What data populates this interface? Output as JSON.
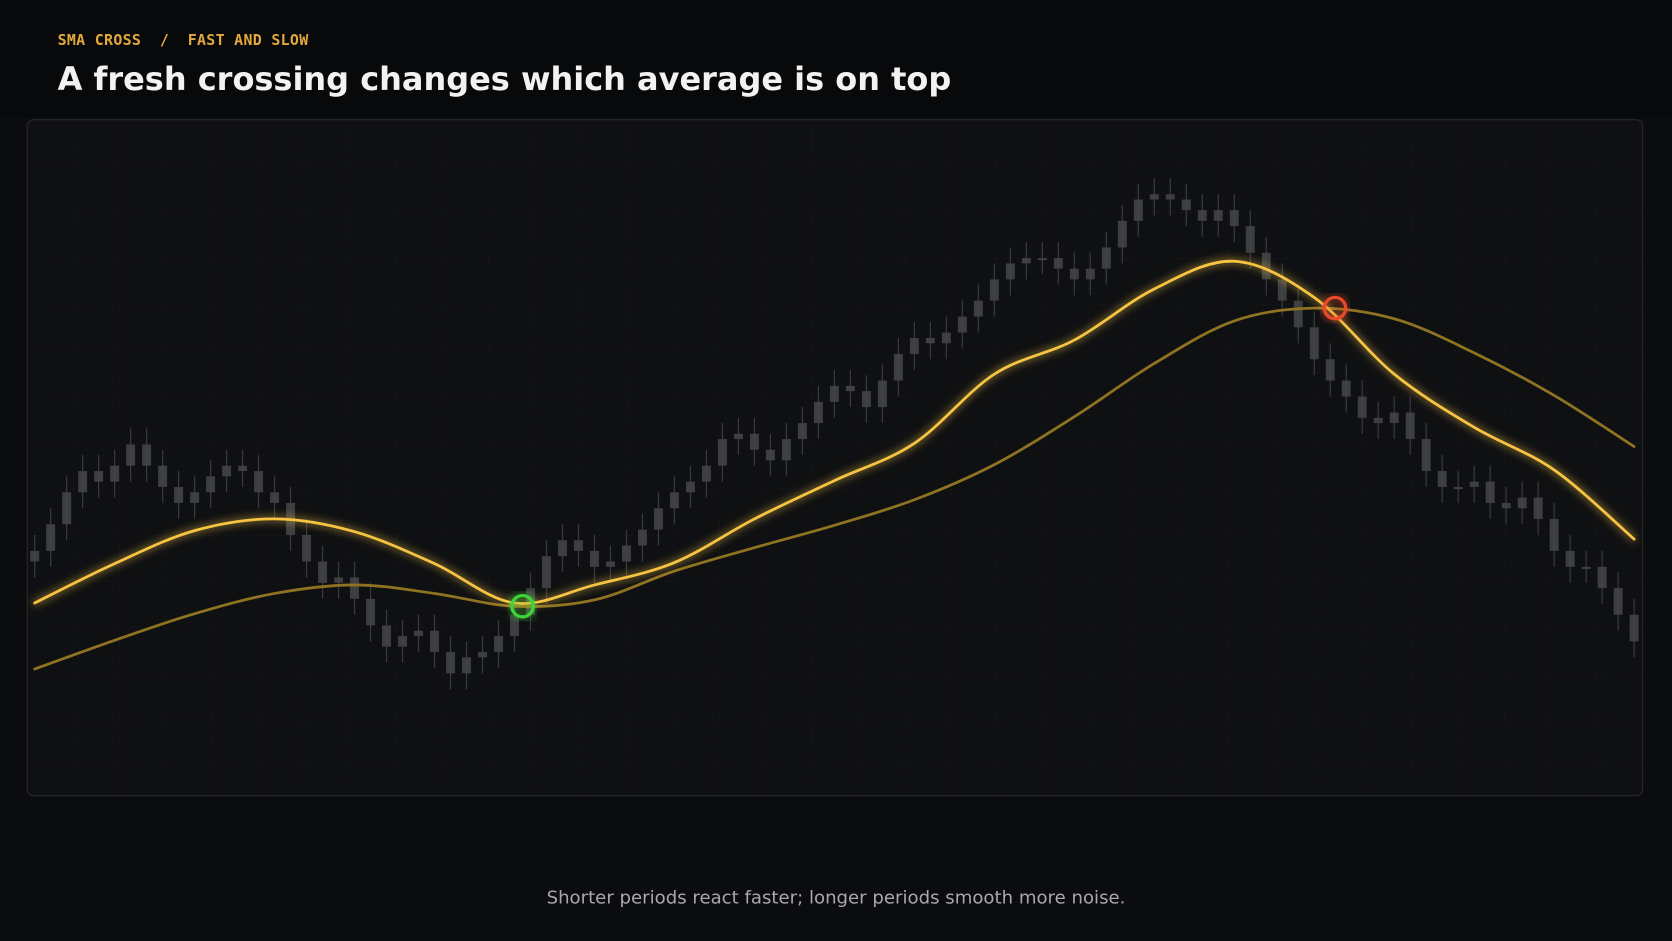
{
  "chart_data": {
    "type": "candlestick",
    "eyebrow": "SMA CROSS  /  FAST AND SLOW",
    "title": "A fresh crossing changes which average is on top",
    "caption": "Shorter periods react faster; longer periods smooth more noise.",
    "xlim": [
      -0.5,
      100.5
    ],
    "ylim": [
      0,
      127
    ],
    "candle_color": "#454649",
    "open": [
      44,
      46,
      51,
      57,
      61,
      59,
      62,
      66,
      62,
      58,
      55,
      57,
      60,
      62,
      61,
      57,
      55,
      49,
      44,
      40,
      41,
      37,
      32,
      28,
      30,
      31,
      27,
      23,
      26,
      27,
      30,
      34,
      39,
      45,
      48,
      46,
      43,
      44,
      47,
      50,
      54,
      57,
      59,
      62,
      67,
      68,
      65,
      63,
      67,
      70,
      74,
      77,
      76,
      73,
      78,
      83,
      86,
      85,
      87,
      90,
      93,
      97,
      100,
      101,
      101,
      99,
      97,
      99,
      103,
      108,
      112,
      113,
      112,
      110,
      108,
      110,
      107,
      102,
      97,
      93,
      88,
      82,
      78,
      75,
      71,
      70,
      72,
      67,
      61,
      58,
      58,
      59,
      55,
      54,
      56,
      52,
      46,
      43,
      43,
      39,
      34
    ],
    "high": [
      49,
      54,
      60,
      64,
      64,
      65,
      69,
      69,
      65,
      61,
      60,
      63,
      65,
      65,
      64,
      60,
      58,
      52,
      47,
      44,
      44,
      40,
      35,
      33,
      34,
      34,
      30,
      29,
      30,
      33,
      37,
      42,
      48,
      51,
      51,
      49,
      47,
      50,
      53,
      57,
      60,
      62,
      65,
      70,
      71,
      71,
      68,
      70,
      73,
      77,
      80,
      80,
      79,
      81,
      86,
      89,
      89,
      90,
      93,
      96,
      100,
      103,
      104,
      104,
      104,
      102,
      102,
      106,
      111,
      115,
      116,
      116,
      115,
      113,
      113,
      113,
      110,
      105,
      100,
      96,
      91,
      85,
      81,
      78,
      74,
      75,
      75,
      70,
      64,
      61,
      62,
      62,
      58,
      59,
      59,
      55,
      49,
      46,
      46,
      42,
      37
    ],
    "low": [
      41,
      43,
      48,
      54,
      56,
      56,
      59,
      59,
      55,
      52,
      52,
      54,
      57,
      58,
      54,
      52,
      46,
      41,
      37,
      37,
      34,
      29,
      25,
      25,
      27,
      24,
      20,
      20,
      23,
      24,
      27,
      31,
      36,
      42,
      43,
      40,
      40,
      41,
      44,
      47,
      51,
      54,
      56,
      59,
      64,
      62,
      60,
      60,
      64,
      67,
      71,
      73,
      70,
      70,
      75,
      80,
      82,
      82,
      84,
      87,
      90,
      94,
      97,
      98,
      96,
      94,
      94,
      96,
      100,
      105,
      109,
      109,
      107,
      105,
      105,
      104,
      99,
      94,
      90,
      85,
      79,
      75,
      72,
      68,
      67,
      67,
      64,
      58,
      55,
      55,
      55,
      52,
      51,
      51,
      49,
      43,
      40,
      40,
      36,
      31,
      26
    ],
    "close": [
      46,
      51,
      57,
      61,
      59,
      62,
      66,
      62,
      58,
      55,
      57,
      60,
      62,
      61,
      57,
      55,
      49,
      44,
      40,
      41,
      37,
      32,
      28,
      30,
      31,
      27,
      23,
      26,
      27,
      30,
      34,
      39,
      45,
      48,
      46,
      43,
      44,
      47,
      50,
      54,
      57,
      59,
      62,
      67,
      68,
      65,
      63,
      67,
      70,
      74,
      77,
      76,
      73,
      78,
      83,
      86,
      85,
      87,
      90,
      93,
      97,
      100,
      101,
      101,
      99,
      97,
      99,
      103,
      108,
      112,
      113,
      112,
      110,
      108,
      110,
      107,
      102,
      97,
      93,
      88,
      82,
      78,
      75,
      71,
      70,
      72,
      67,
      61,
      58,
      58,
      59,
      55,
      54,
      56,
      52,
      46,
      43,
      43,
      39,
      34,
      29
    ],
    "line_x": [
      0,
      5,
      10,
      15,
      20,
      25,
      30,
      35,
      40,
      45,
      50,
      55,
      60,
      65,
      70,
      75,
      80,
      85,
      90,
      95,
      100
    ],
    "lines": [
      {
        "color": "#f6c443",
        "values": [
          36.2,
          43.6,
          49.8,
          52,
          49.6,
          43.6,
          36.2,
          39.6,
          43.8,
          52,
          59.2,
          66.2,
          79.2,
          85.6,
          95.2,
          100.4,
          93.6,
          79.2,
          69.2,
          61.2,
          48.2
        ]
      },
      {
        "color": "#8f7222",
        "values": [
          23.8,
          29.2,
          34.2,
          38,
          39.6,
          38,
          35.6,
          36.8,
          42.2,
          46.6,
          50.8,
          55.6,
          62.2,
          71.2,
          81.2,
          89.2,
          91.6,
          89.6,
          83.2,
          75.2,
          65.6
        ]
      }
    ],
    "crossings": [
      {
        "x": 30.5,
        "y": 35.6,
        "color": "#3fd43a"
      },
      {
        "x": 81.3,
        "y": 91.6,
        "color": "#ea4a2a"
      }
    ]
  }
}
